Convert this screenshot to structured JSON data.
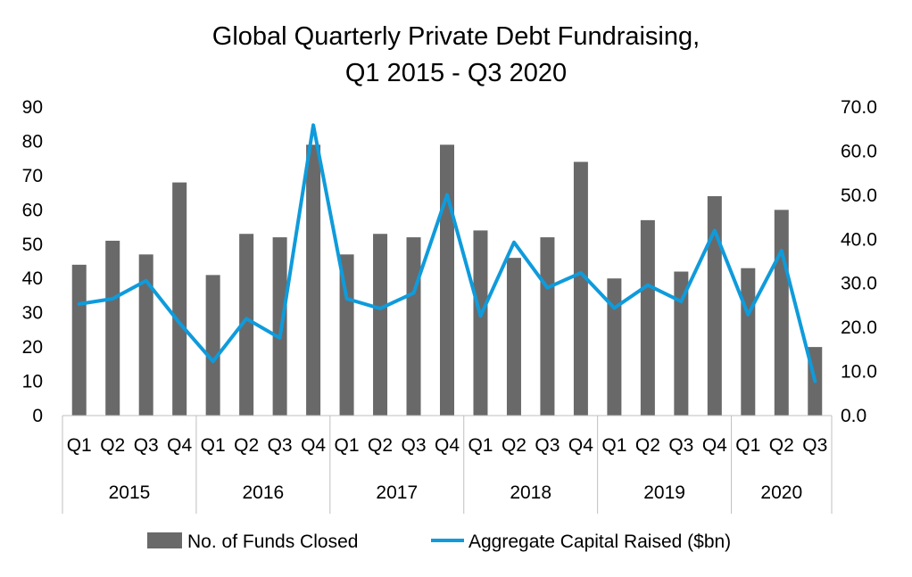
{
  "chart_data": {
    "type": "bar",
    "title": "Global Quarterly Private Debt Fundraising,",
    "subtitle": "Q1 2015 - Q3 2020",
    "categories": [
      "Q1",
      "Q2",
      "Q3",
      "Q4",
      "Q1",
      "Q2",
      "Q3",
      "Q4",
      "Q1",
      "Q2",
      "Q3",
      "Q4",
      "Q1",
      "Q2",
      "Q3",
      "Q4",
      "Q1",
      "Q2",
      "Q3",
      "Q4",
      "Q1",
      "Q2",
      "Q3"
    ],
    "groups": [
      {
        "label": "2015",
        "count": 4
      },
      {
        "label": "2016",
        "count": 4
      },
      {
        "label": "2017",
        "count": 4
      },
      {
        "label": "2018",
        "count": 4
      },
      {
        "label": "2019",
        "count": 4
      },
      {
        "label": "2020",
        "count": 3
      }
    ],
    "series": [
      {
        "name": "No. of Funds Closed",
        "type": "bar",
        "axis": "left",
        "color": "#696969",
        "values": [
          44,
          51,
          47,
          68,
          41,
          53,
          52,
          79,
          47,
          53,
          52,
          79,
          54,
          46,
          52,
          74,
          40,
          57,
          42,
          64,
          43,
          60,
          20
        ]
      },
      {
        "name": "Aggregate Capital Raised ($bn)",
        "type": "line",
        "axis": "right",
        "color": "#0F9BDB",
        "values": [
          25.3,
          26.5,
          30.6,
          21.0,
          12.3,
          22.0,
          17.6,
          65.9,
          26.5,
          24.3,
          27.8,
          50.1,
          22.6,
          39.3,
          29.0,
          32.4,
          24.4,
          29.6,
          25.9,
          42.0,
          22.9,
          37.4,
          7.8
        ]
      }
    ],
    "left_axis": {
      "ylim": [
        0,
        90
      ],
      "ticks": [
        "0",
        "10",
        "20",
        "30",
        "40",
        "50",
        "60",
        "70",
        "80",
        "90"
      ]
    },
    "right_axis": {
      "ylim": [
        0,
        70
      ],
      "ticks": [
        "0.0",
        "10.0",
        "20.0",
        "30.0",
        "40.0",
        "50.0",
        "60.0",
        "70.0"
      ]
    },
    "grid": false,
    "legend_position": "bottom"
  }
}
